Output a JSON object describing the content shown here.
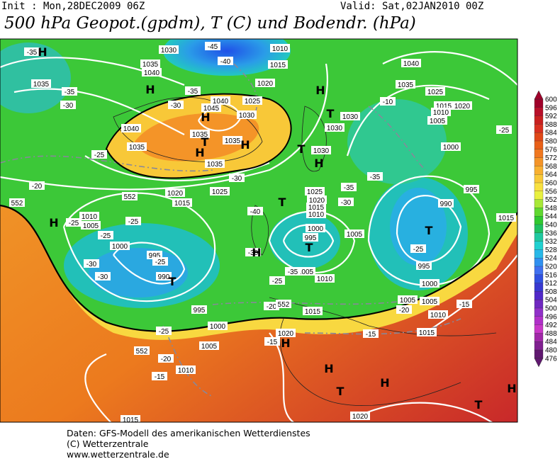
{
  "header": {
    "init": "Init : Mon,28DEC2009 06Z",
    "valid": "Valid: Sat,02JAN2010 00Z",
    "title": "500 hPa Geopot.(gpdm), T (C) und Bodendr. (hPa)"
  },
  "map": {
    "labels": [
      "-35",
      "H",
      "1030",
      "-45",
      "1010",
      "-40",
      "1015",
      "1040",
      "1035",
      "1040",
      "1035",
      "-35",
      "H",
      "-35",
      "1020",
      "H",
      "1035",
      "1025",
      "1040",
      "1025",
      "-30",
      "-30",
      "1045",
      "-10",
      "1015",
      "1020",
      "1010",
      "H",
      "1030",
      "T",
      "1030",
      "1005",
      "1040",
      "1035",
      "T",
      "1035",
      "H",
      "1030",
      "-25",
      "1035",
      "-25",
      "H",
      "T",
      "1030",
      "1000",
      "1035",
      "-30",
      "H",
      "-35",
      "1020",
      "1025",
      "1025",
      "-35",
      "995",
      "-20",
      "552",
      "1015",
      "1020",
      "-30",
      "990",
      "T",
      "552",
      "-40",
      "1015",
      "1010",
      "1010",
      "-25",
      "1005",
      "-25",
      "-25",
      "H",
      "1000",
      "T",
      "1015",
      "995",
      "T",
      "1005",
      "1000",
      "-30",
      "H",
      "995",
      "-25",
      "-25",
      "-30",
      "1005",
      "-35",
      "995",
      "990",
      "T",
      "-30",
      "1010",
      "-25",
      "1000",
      "995",
      "-20",
      "552",
      "1015",
      "1005",
      "1005",
      "-20",
      "-15",
      "1010",
      "1000",
      "-25",
      "1020",
      "-15",
      "1015",
      "-15",
      "H",
      "1005",
      "552",
      "-20",
      "1010",
      "H",
      "-15",
      "H",
      "T",
      "H",
      "T",
      "1020",
      "1015"
    ]
  },
  "colorbar": {
    "labels": [
      600,
      596,
      592,
      588,
      584,
      580,
      576,
      572,
      568,
      564,
      560,
      556,
      552,
      548,
      544,
      540,
      536,
      532,
      528,
      524,
      520,
      516,
      512,
      508,
      504,
      500,
      496,
      492,
      488,
      484,
      480,
      476
    ]
  },
  "footer": {
    "lines": [
      "Daten: GFS-Modell des amerikanischen Wetterdienstes",
      "(C) Wetterzentrale",
      "www.wetterzentrale.de"
    ]
  }
}
